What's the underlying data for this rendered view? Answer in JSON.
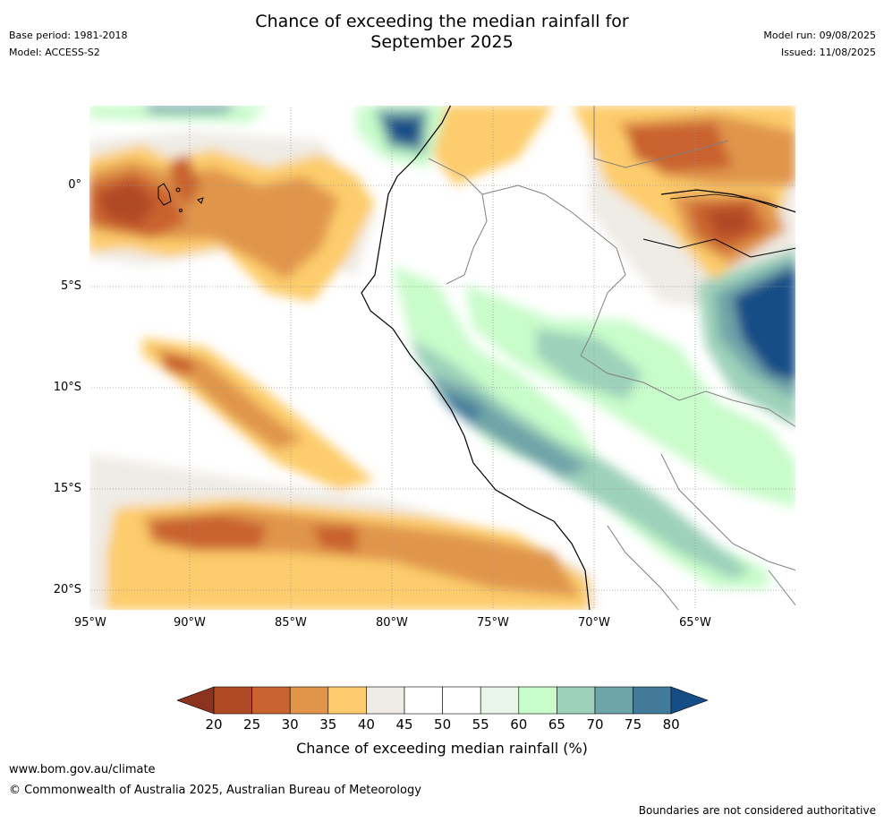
{
  "header": {
    "title_line1": "Chance of exceeding the median rainfall for",
    "title_line2": "September 2025",
    "base_period": "Base period: 1981-2018",
    "model": "Model: ACCESS-S2",
    "model_run": "Model run: 09/08/2025",
    "issued": "Issued: 11/08/2025"
  },
  "map": {
    "lat_labels": [
      "0°",
      "5°S",
      "10°S",
      "15°S",
      "20°S"
    ],
    "lon_labels": [
      "95°W",
      "90°W",
      "85°W",
      "80°W",
      "75°W",
      "70°W",
      "65°W"
    ]
  },
  "colorbar": {
    "ticks": [
      "20",
      "25",
      "30",
      "35",
      "40",
      "45",
      "50",
      "55",
      "60",
      "65",
      "70",
      "75",
      "80"
    ],
    "colors": [
      "#b04a26",
      "#c9622f",
      "#e0954b",
      "#fdcc6c",
      "#efebe5",
      "#ffffff",
      "#ffffff",
      "#e8f5e8",
      "#c8fcca",
      "#9dd1ba",
      "#6fa4a8",
      "#437a9a"
    ],
    "low_extend_color": "#8c3320",
    "high_extend_color": "#154d87",
    "label": "Chance of exceeding median rainfall (%)"
  },
  "footer": {
    "website": "www.bom.gov.au/climate",
    "copyright": "© Commonwealth of Australia 2025, Australian Bureau of Meteorology",
    "disclaimer": "Boundaries are not considered authoritative"
  }
}
